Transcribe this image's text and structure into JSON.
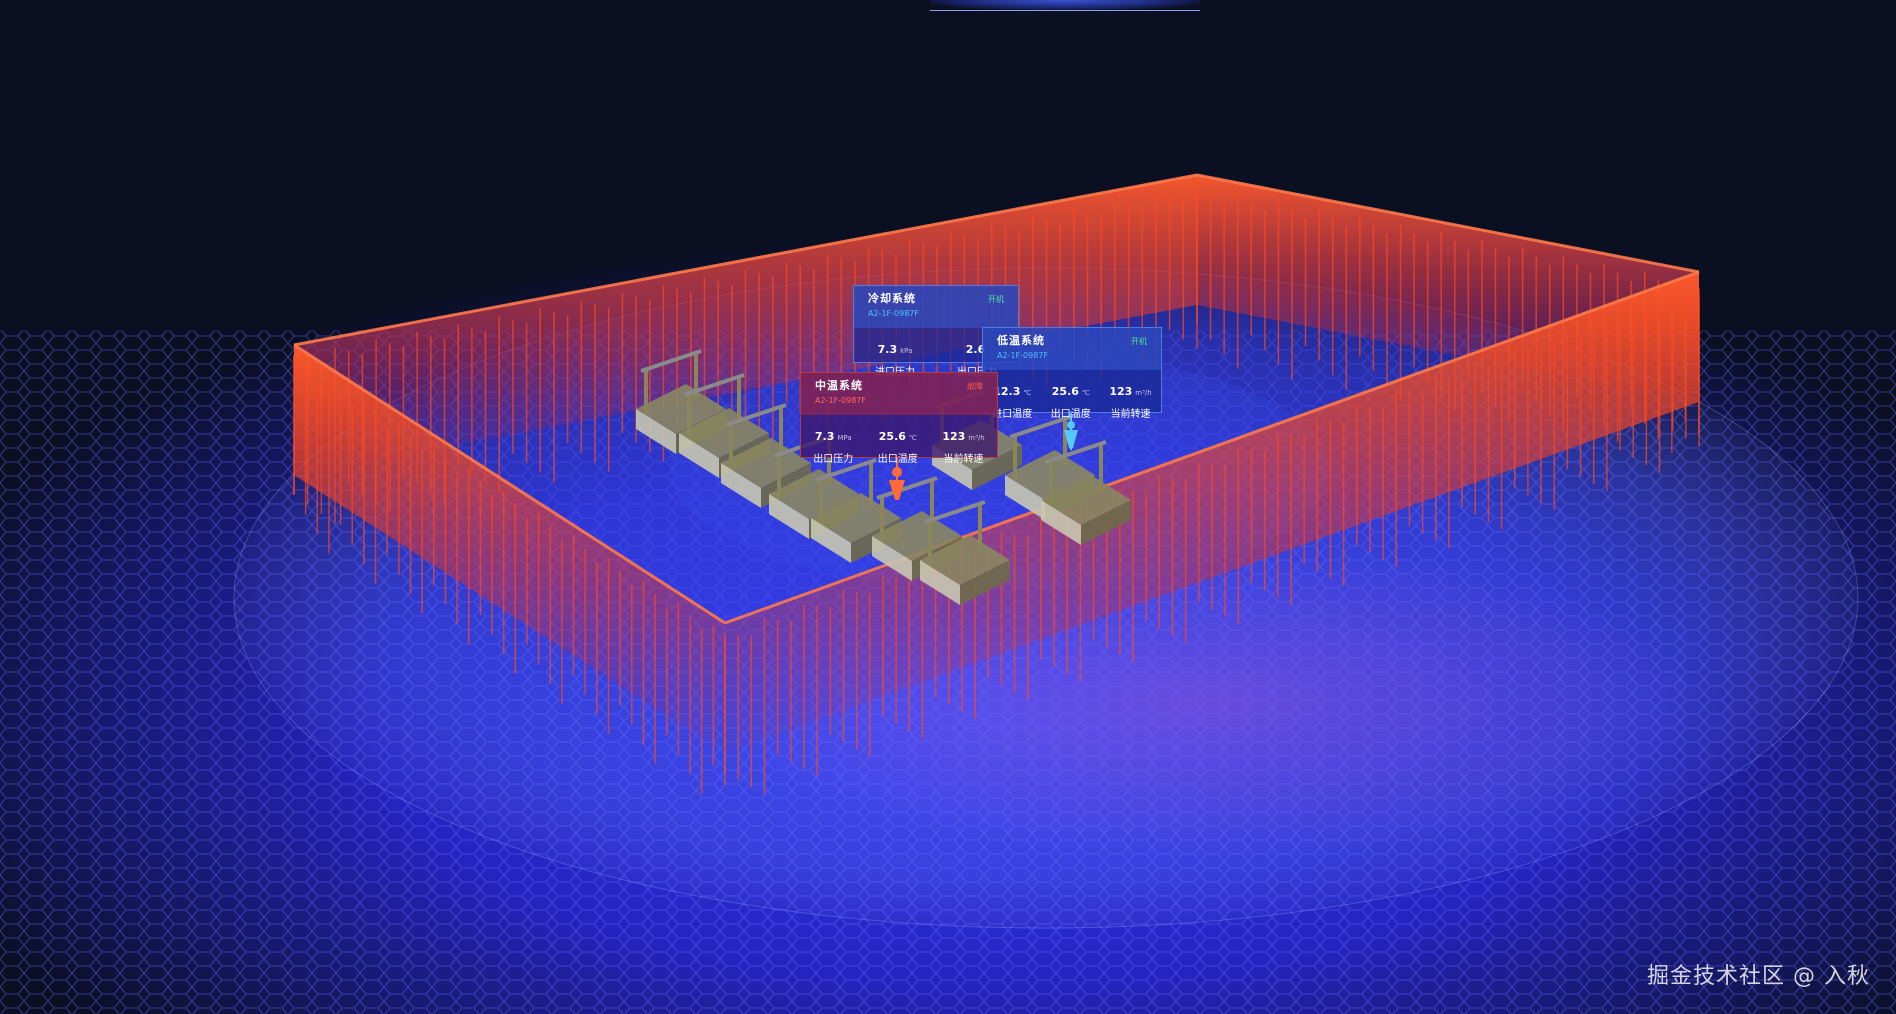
{
  "colors": {
    "background": "#0a0f22",
    "floor": "#2a2ad0",
    "wall": "#ff4a1e",
    "normal_status": "#4de39a",
    "fault_status": "#ff5a4a"
  },
  "cards": [
    {
      "title": "冷却系统",
      "code": "A2-1F-0987F",
      "status": "开机",
      "type": "blue",
      "metrics": [
        {
          "value": "7.3",
          "unit": "kPa",
          "label": "进口压力"
        },
        {
          "value": "2.6",
          "unit": "",
          "label": "出口压力"
        }
      ]
    },
    {
      "title": "低温系统",
      "code": "A2-1F-0987F",
      "status": "开机",
      "type": "blue",
      "metrics": [
        {
          "value": "12.3",
          "unit": "℃",
          "label": "进口温度"
        },
        {
          "value": "25.6",
          "unit": "℃",
          "label": "出口温度"
        },
        {
          "value": "123",
          "unit": "m³/h",
          "label": "当前转速"
        }
      ]
    },
    {
      "title": "中温系统",
      "code": "A2-1F-0987F",
      "status": "故障",
      "type": "red",
      "metrics": [
        {
          "value": "7.3",
          "unit": "MPa",
          "label": "出口压力"
        },
        {
          "value": "25.6",
          "unit": "℃",
          "label": "出口温度"
        },
        {
          "value": "123",
          "unit": "m³/h",
          "label": "当前转速"
        }
      ]
    }
  ],
  "watermark": "掘金技术社区 @ 入秋",
  "icons": {
    "fault_pin": "location-pin-icon",
    "normal_pin": "location-pin-icon"
  }
}
